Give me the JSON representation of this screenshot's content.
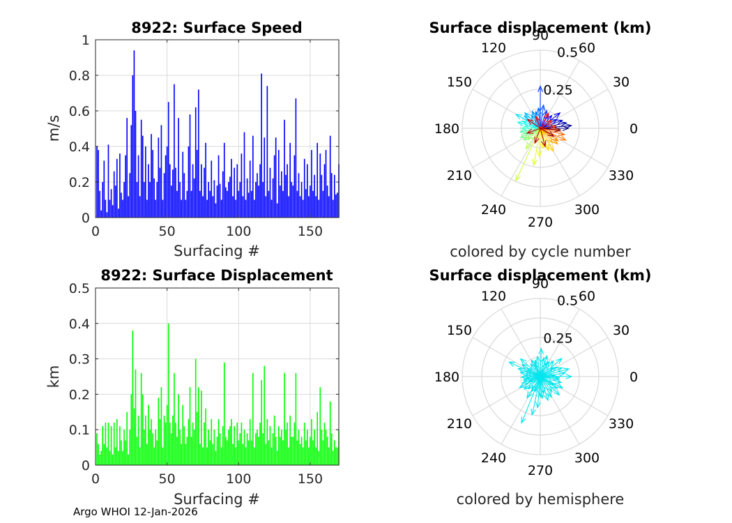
{
  "footer": "Argo WHOI 12-Jan-2026",
  "colors": {
    "speed_bar": "#0000ff",
    "disp_bar": "#00ff00",
    "hemisphere": "#00e5ee",
    "grid": "#d9d9d9",
    "axis": "#262626"
  },
  "chart_data": [
    {
      "type": "bar",
      "title": "8922: Surface Speed",
      "xlabel": "Surfacing #",
      "ylabel": "m/s",
      "xlim": [
        0,
        170
      ],
      "ylim": [
        0,
        1
      ],
      "xticks": [
        "0",
        "50",
        "100",
        "150"
      ],
      "yticks": [
        "0",
        "0.2",
        "0.4",
        "0.6",
        "0.8",
        "1"
      ],
      "grid": true,
      "series": [
        {
          "name": "speed",
          "values": [
            0.4,
            0.38,
            0.15,
            0.04,
            0.2,
            0.32,
            0.1,
            0.03,
            0.41,
            0.1,
            0.16,
            0.07,
            0.26,
            0.18,
            0.33,
            0.05,
            0.36,
            0.14,
            0.1,
            0.2,
            0.35,
            0.56,
            0.12,
            0.25,
            0.52,
            0.8,
            0.94,
            0.6,
            0.2,
            0.35,
            0.12,
            0.55,
            0.46,
            0.2,
            0.4,
            0.1,
            0.3,
            0.2,
            0.47,
            0.38,
            0.22,
            0.1,
            0.2,
            0.45,
            0.28,
            0.52,
            0.1,
            0.25,
            0.35,
            0.4,
            0.65,
            0.3,
            0.18,
            0.27,
            0.75,
            0.28,
            0.15,
            0.56,
            0.2,
            0.1,
            0.37,
            0.25,
            0.1,
            0.15,
            0.4,
            0.58,
            0.15,
            0.3,
            0.22,
            0.62,
            0.38,
            0.72,
            0.15,
            0.3,
            0.12,
            0.28,
            0.42,
            0.1,
            0.2,
            0.15,
            0.32,
            0.12,
            0.21,
            0.08,
            0.18,
            0.35,
            0.19,
            0.1,
            0.26,
            0.42,
            0.17,
            0.15,
            0.2,
            0.23,
            0.33,
            0.12,
            0.28,
            0.1,
            0.3,
            0.15,
            0.2,
            0.36,
            0.12,
            0.48,
            0.1,
            0.22,
            0.14,
            0.32,
            0.15,
            0.46,
            0.1,
            0.2,
            0.25,
            0.18,
            0.3,
            0.81,
            0.2,
            0.45,
            0.12,
            0.74,
            0.15,
            0.28,
            0.1,
            0.22,
            0.35,
            0.45,
            0.08,
            0.38,
            0.18,
            0.26,
            0.15,
            0.55,
            0.24,
            0.3,
            0.12,
            0.42,
            0.2,
            0.18,
            0.35,
            0.67,
            0.15,
            0.25,
            0.12,
            0.2,
            0.1,
            0.33,
            0.16,
            0.3,
            0.12,
            0.18,
            0.38,
            0.15,
            0.24,
            0.12,
            0.42,
            0.1,
            0.36,
            0.24,
            0.15,
            0.3,
            0.38,
            0.18,
            0.12,
            0.46,
            0.25,
            0.1,
            0.24,
            0.13,
            0.14,
            0.3
          ]
        }
      ]
    },
    {
      "type": "bar",
      "title": "8922: Surface Displacement",
      "xlabel": "Surfacing #",
      "ylabel": "km",
      "xlim": [
        0,
        170
      ],
      "ylim": [
        0,
        0.5
      ],
      "xticks": [
        "0",
        "50",
        "100",
        "150"
      ],
      "yticks": [
        "0",
        "0.1",
        "0.2",
        "0.3",
        "0.4",
        "0.5"
      ],
      "grid": true,
      "series": [
        {
          "name": "displacement",
          "values": [
            0.09,
            0.06,
            0.03,
            0.04,
            0.11,
            0.06,
            0.12,
            0.05,
            0.12,
            0.04,
            0.11,
            0.03,
            0.12,
            0.05,
            0.13,
            0.04,
            0.11,
            0.07,
            0.04,
            0.1,
            0.07,
            0.15,
            0.03,
            0.1,
            0.2,
            0.38,
            0.16,
            0.27,
            0.08,
            0.14,
            0.05,
            0.26,
            0.2,
            0.1,
            0.14,
            0.06,
            0.17,
            0.1,
            0.13,
            0.09,
            0.05,
            0.1,
            0.07,
            0.19,
            0.13,
            0.22,
            0.05,
            0.14,
            0.12,
            0.17,
            0.4,
            0.12,
            0.09,
            0.14,
            0.26,
            0.12,
            0.08,
            0.2,
            0.1,
            0.06,
            0.17,
            0.11,
            0.06,
            0.08,
            0.13,
            0.22,
            0.08,
            0.12,
            0.1,
            0.3,
            0.15,
            0.22,
            0.06,
            0.21,
            0.05,
            0.12,
            0.16,
            0.05,
            0.1,
            0.07,
            0.13,
            0.06,
            0.1,
            0.04,
            0.08,
            0.13,
            0.09,
            0.05,
            0.11,
            0.29,
            0.08,
            0.07,
            0.1,
            0.11,
            0.13,
            0.06,
            0.11,
            0.05,
            0.12,
            0.07,
            0.09,
            0.12,
            0.06,
            0.1,
            0.05,
            0.09,
            0.07,
            0.13,
            0.07,
            0.26,
            0.05,
            0.09,
            0.1,
            0.08,
            0.12,
            0.24,
            0.09,
            0.28,
            0.06,
            0.13,
            0.07,
            0.11,
            0.05,
            0.09,
            0.14,
            0.08,
            0.04,
            0.11,
            0.08,
            0.1,
            0.07,
            0.26,
            0.1,
            0.12,
            0.05,
            0.14,
            0.08,
            0.08,
            0.12,
            0.26,
            0.07,
            0.1,
            0.06,
            0.08,
            0.05,
            0.12,
            0.07,
            0.1,
            0.05,
            0.08,
            0.13,
            0.07,
            0.1,
            0.05,
            0.15,
            0.04,
            0.22,
            0.1,
            0.07,
            0.12,
            0.1,
            0.08,
            0.05,
            0.18,
            0.09,
            0.04,
            0.07,
            0.05,
            0.05,
            0.1
          ]
        }
      ]
    },
    {
      "type": "polar",
      "title": "Surface displacement (km)",
      "subtitle": "colored by cycle number",
      "rlim": [
        0,
        0.5
      ],
      "rticks": [
        "0.25",
        "0.5"
      ],
      "theta_labels": [
        "0",
        "30",
        "60",
        "90",
        "120",
        "150",
        "180",
        "210",
        "240",
        "270",
        "300",
        "330"
      ],
      "colormap": "jet",
      "vectors": [
        [
          0.18,
          0
        ],
        [
          0.2,
          5
        ],
        [
          0.17,
          12
        ],
        [
          0.15,
          20
        ],
        [
          0.12,
          28
        ],
        [
          0.16,
          38
        ],
        [
          0.11,
          48
        ],
        [
          0.1,
          58
        ],
        [
          0.12,
          70
        ],
        [
          0.27,
          90
        ],
        [
          0.15,
          82
        ],
        [
          0.13,
          95
        ],
        [
          0.11,
          105
        ],
        [
          0.12,
          115
        ],
        [
          0.1,
          125
        ],
        [
          0.14,
          135
        ],
        [
          0.13,
          142
        ],
        [
          0.18,
          150
        ],
        [
          0.12,
          158
        ],
        [
          0.15,
          165
        ],
        [
          0.1,
          172
        ],
        [
          0.12,
          180
        ],
        [
          0.13,
          190
        ],
        [
          0.11,
          198
        ],
        [
          0.14,
          205
        ],
        [
          0.13,
          215
        ],
        [
          0.11,
          222
        ],
        [
          0.16,
          235
        ],
        [
          0.37,
          245
        ],
        [
          0.24,
          260
        ],
        [
          0.18,
          268
        ],
        [
          0.13,
          278
        ],
        [
          0.15,
          290
        ],
        [
          0.17,
          300
        ],
        [
          0.12,
          310
        ],
        [
          0.15,
          318
        ],
        [
          0.14,
          325
        ],
        [
          0.18,
          335
        ],
        [
          0.16,
          345
        ],
        [
          0.12,
          352
        ],
        [
          0.1,
          8
        ],
        [
          0.09,
          35
        ],
        [
          0.11,
          62
        ],
        [
          0.08,
          110
        ],
        [
          0.1,
          145
        ],
        [
          0.09,
          200
        ],
        [
          0.1,
          250
        ],
        [
          0.12,
          285
        ],
        [
          0.1,
          330
        ],
        [
          0.13,
          355
        ]
      ]
    },
    {
      "type": "polar",
      "title": "Surface displacement (km)",
      "subtitle": "colored by hemisphere",
      "rlim": [
        0,
        0.5
      ],
      "rticks": [
        "0.25",
        "0.5"
      ],
      "theta_labels": [
        "0",
        "30",
        "60",
        "90",
        "120",
        "150",
        "180",
        "210",
        "240",
        "270",
        "300",
        "330"
      ],
      "vectors": [
        [
          0.2,
          0
        ],
        [
          0.16,
          8
        ],
        [
          0.19,
          15
        ],
        [
          0.15,
          22
        ],
        [
          0.12,
          30
        ],
        [
          0.18,
          40
        ],
        [
          0.13,
          50
        ],
        [
          0.11,
          60
        ],
        [
          0.14,
          72
        ],
        [
          0.18,
          88
        ],
        [
          0.12,
          80
        ],
        [
          0.13,
          98
        ],
        [
          0.11,
          108
        ],
        [
          0.12,
          118
        ],
        [
          0.1,
          128
        ],
        [
          0.17,
          138
        ],
        [
          0.14,
          146
        ],
        [
          0.22,
          155
        ],
        [
          0.15,
          160
        ],
        [
          0.13,
          168
        ],
        [
          0.1,
          175
        ],
        [
          0.12,
          182
        ],
        [
          0.11,
          192
        ],
        [
          0.12,
          200
        ],
        [
          0.15,
          208
        ],
        [
          0.13,
          218
        ],
        [
          0.11,
          226
        ],
        [
          0.16,
          238
        ],
        [
          0.32,
          248
        ],
        [
          0.25,
          258
        ],
        [
          0.2,
          265
        ],
        [
          0.14,
          275
        ],
        [
          0.16,
          288
        ],
        [
          0.15,
          298
        ],
        [
          0.12,
          308
        ],
        [
          0.17,
          316
        ],
        [
          0.13,
          324
        ],
        [
          0.16,
          333
        ],
        [
          0.14,
          344
        ],
        [
          0.12,
          352
        ],
        [
          0.09,
          5
        ],
        [
          0.1,
          33
        ],
        [
          0.1,
          65
        ],
        [
          0.09,
          112
        ],
        [
          0.1,
          148
        ],
        [
          0.08,
          205
        ],
        [
          0.1,
          252
        ],
        [
          0.11,
          282
        ],
        [
          0.1,
          328
        ],
        [
          0.12,
          357
        ],
        [
          0.13,
          270
        ],
        [
          0.11,
          240
        ],
        [
          0.09,
          190
        ],
        [
          0.1,
          160
        ]
      ]
    }
  ]
}
